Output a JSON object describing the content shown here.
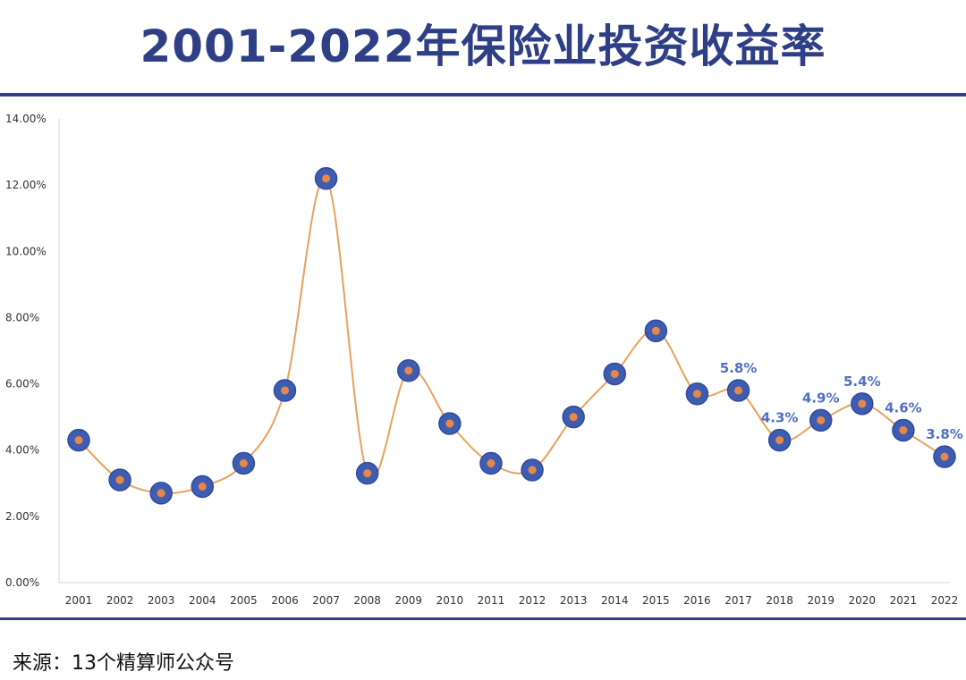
{
  "title": "2001-2022年保险业投资收益率",
  "source": "来源：13个精算师公众号",
  "colors": {
    "line": "#e8a15a",
    "marker": "#3f5db0",
    "marker_center": "#e8874a",
    "label": "#4f6fbf",
    "accent": "#2e3f86"
  },
  "chart_data": {
    "type": "line",
    "categories": [
      "2001",
      "2002",
      "2003",
      "2004",
      "2005",
      "2006",
      "2007",
      "2008",
      "2009",
      "2010",
      "2011",
      "2012",
      "2013",
      "2014",
      "2015",
      "2016",
      "2017",
      "2018",
      "2019",
      "2020",
      "2021",
      "2022"
    ],
    "series": [
      {
        "values": [
          4.3,
          3.1,
          2.7,
          2.9,
          3.6,
          5.8,
          12.2,
          3.3,
          6.4,
          4.8,
          3.6,
          3.4,
          5.0,
          6.3,
          7.6,
          5.7,
          5.8,
          4.3,
          4.9,
          5.4,
          4.6,
          3.8
        ]
      }
    ],
    "data_labels": [
      {
        "x": "2017",
        "text": "5.8%"
      },
      {
        "x": "2018",
        "text": "4.3%"
      },
      {
        "x": "2019",
        "text": "4.9%"
      },
      {
        "x": "2020",
        "text": "5.4%"
      },
      {
        "x": "2021",
        "text": "4.6%"
      },
      {
        "x": "2022",
        "text": "3.8%"
      }
    ],
    "yticks": [
      "0.00%",
      "2.00%",
      "4.00%",
      "6.00%",
      "8.00%",
      "10.00%",
      "12.00%",
      "14.00%"
    ],
    "ylim": [
      0,
      14
    ],
    "grid": false,
    "legend": "none"
  }
}
